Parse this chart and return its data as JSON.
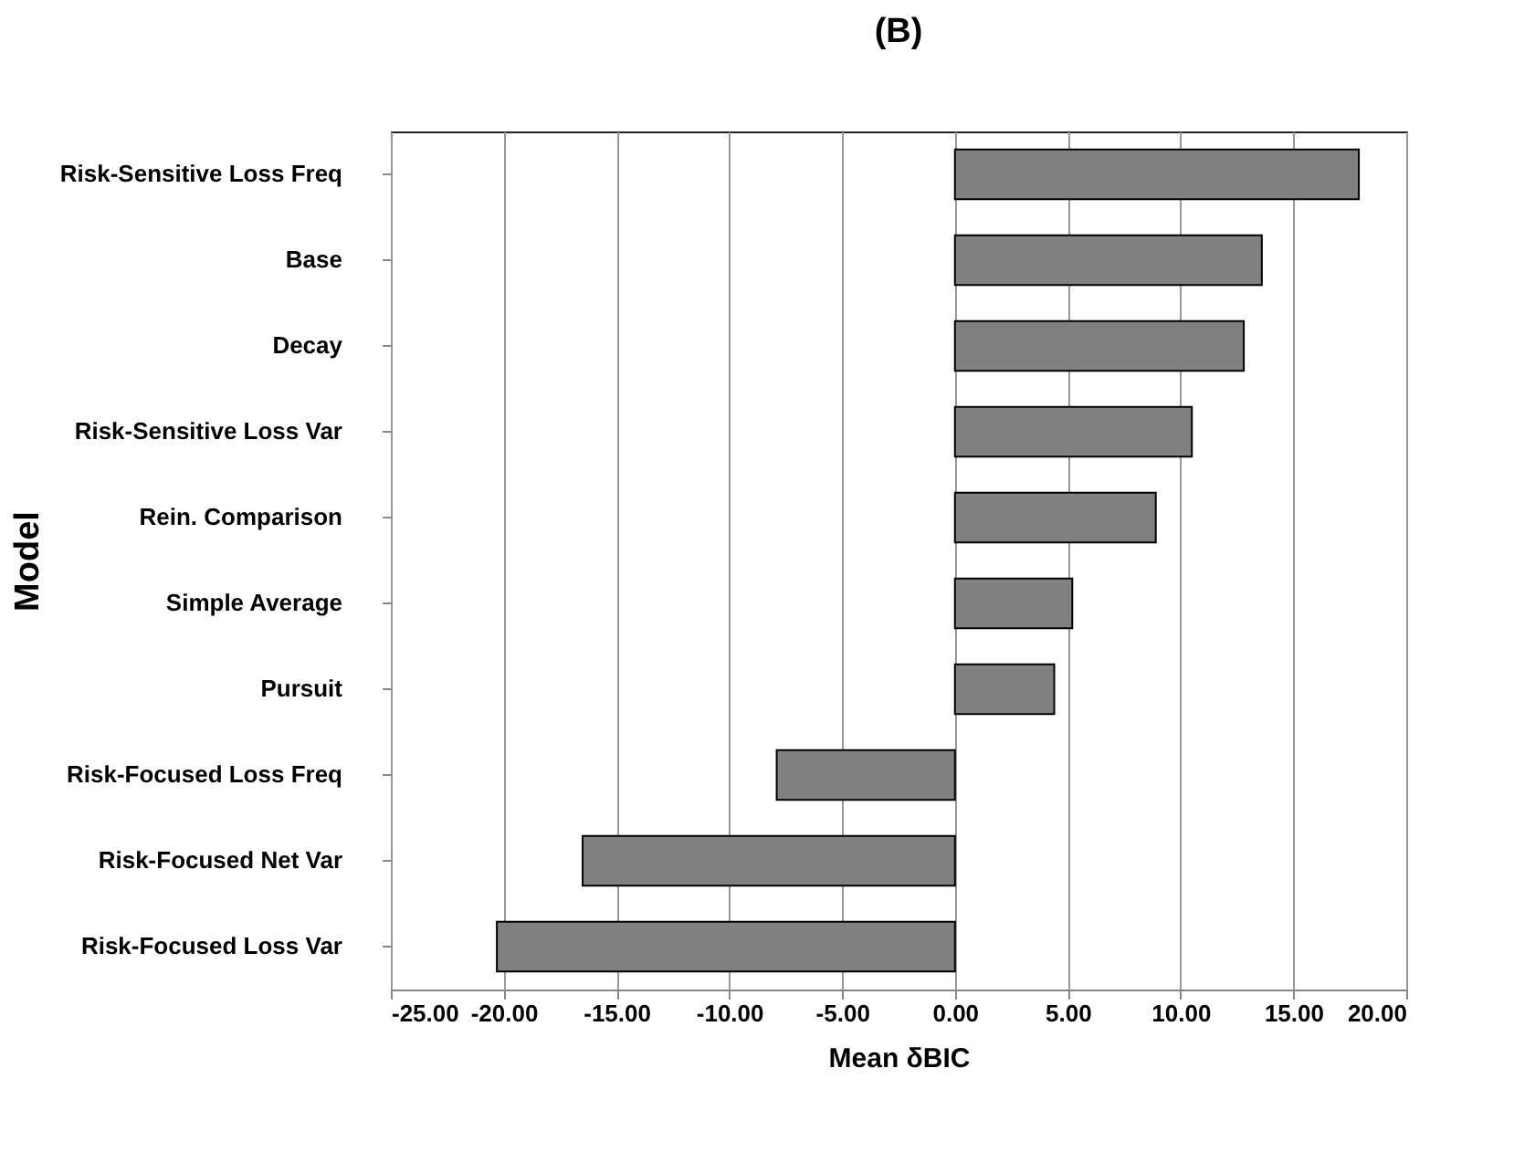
{
  "chart_data": {
    "type": "bar",
    "orientation": "horizontal",
    "title": "(B)",
    "xlabel": "Mean δBIC",
    "ylabel": "Model",
    "categories": [
      "Risk-Sensitive Loss Freq",
      "Base",
      "Decay",
      "Risk-Sensitive Loss Var",
      "Rein. Comparison",
      "Simple Average",
      "Pursuit",
      "Risk-Focused Loss Freq",
      "Risk-Focused Net Var",
      "Risk-Focused Loss Var"
    ],
    "values": [
      17.9,
      13.6,
      12.8,
      10.5,
      8.9,
      5.2,
      4.4,
      -7.9,
      -16.5,
      -20.3
    ],
    "color": "#808080",
    "xlim": [
      -25,
      20
    ],
    "xticks": [
      {
        "value": -25,
        "label": "-25.00"
      },
      {
        "value": -20,
        "label": "-20.00"
      },
      {
        "value": -15,
        "label": "-15.00"
      },
      {
        "value": -10,
        "label": "-10.00"
      },
      {
        "value": -5,
        "label": "-5.00"
      },
      {
        "value": 0,
        "label": "0.00"
      },
      {
        "value": 5,
        "label": "5.00"
      },
      {
        "value": 10,
        "label": "10.00"
      },
      {
        "value": 15,
        "label": "15.00"
      },
      {
        "value": 20,
        "label": "20.00"
      }
    ],
    "grid": "x"
  }
}
